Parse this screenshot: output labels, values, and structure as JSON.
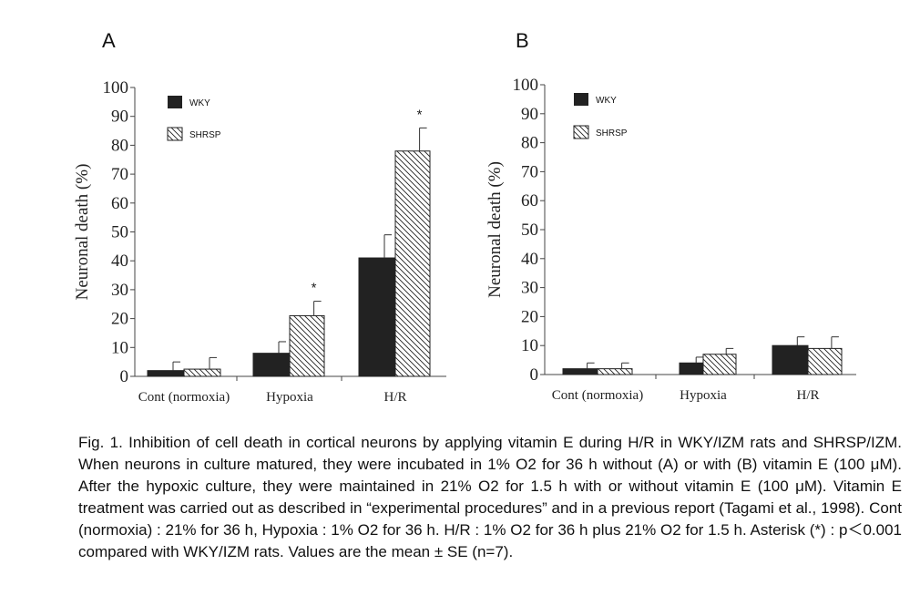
{
  "legend": {
    "wky": "WKY",
    "shrsp": "SHRSP"
  },
  "chart_data": [
    {
      "panel": "A",
      "type": "bar",
      "ylabel": "Neuronal death (%)",
      "ylim": [
        0,
        100
      ],
      "yticks": [
        "0",
        "10",
        "20",
        "30",
        "40",
        "50",
        "60",
        "70",
        "80",
        "90",
        "100"
      ],
      "categories": [
        "Cont (normoxia)",
        "Hypoxia",
        "H/R"
      ],
      "series": [
        {
          "name": "WKY",
          "values": [
            2,
            8,
            41
          ],
          "errors": [
            3,
            4,
            8
          ]
        },
        {
          "name": "SHRSP",
          "values": [
            2.5,
            21,
            78
          ],
          "errors": [
            4,
            5,
            8
          ]
        }
      ],
      "annotations": [
        {
          "text": "*",
          "category": "Hypoxia",
          "series": "SHRSP"
        },
        {
          "text": "*",
          "category": "H/R",
          "series": "SHRSP"
        }
      ]
    },
    {
      "panel": "B",
      "type": "bar",
      "ylabel": "Neuronal death (%)",
      "ylim": [
        0,
        100
      ],
      "yticks": [
        "0",
        "10",
        "20",
        "30",
        "40",
        "50",
        "60",
        "70",
        "80",
        "90",
        "100"
      ],
      "categories": [
        "Cont (normoxia)",
        "Hypoxia",
        "H/R"
      ],
      "series": [
        {
          "name": "WKY",
          "values": [
            2,
            4,
            10
          ],
          "errors": [
            2,
            2,
            3
          ]
        },
        {
          "name": "SHRSP",
          "values": [
            2,
            7,
            9
          ],
          "errors": [
            2,
            2,
            4
          ]
        }
      ],
      "annotations": []
    }
  ],
  "caption": "Fig. 1.   Inhibition of cell death in cortical neurons by applying vitamin E during H/R in WKY/IZM rats and SHRSP/IZM. When neurons in culture matured, they were incubated in 1% O2 for 36 h without (A) or with (B) vitamin E (100 μM). After the hypoxic culture, they were maintained in 21% O2 for 1.5 h with or without vitamin E (100 μM). Vitamin E treatment was carried out as described in “experimental procedures” and in a previous report (Tagami et al., 1998). Cont (normoxia) : 21% for 36 h, Hypoxia : 1% O2 for 36 h. H/R : 1% O2 for 36 h plus 21% O2 for 1.5 h. Asterisk (*) : p＜0.001 compared with WKY/IZM rats. Values are the mean ± SE (n=7)."
}
